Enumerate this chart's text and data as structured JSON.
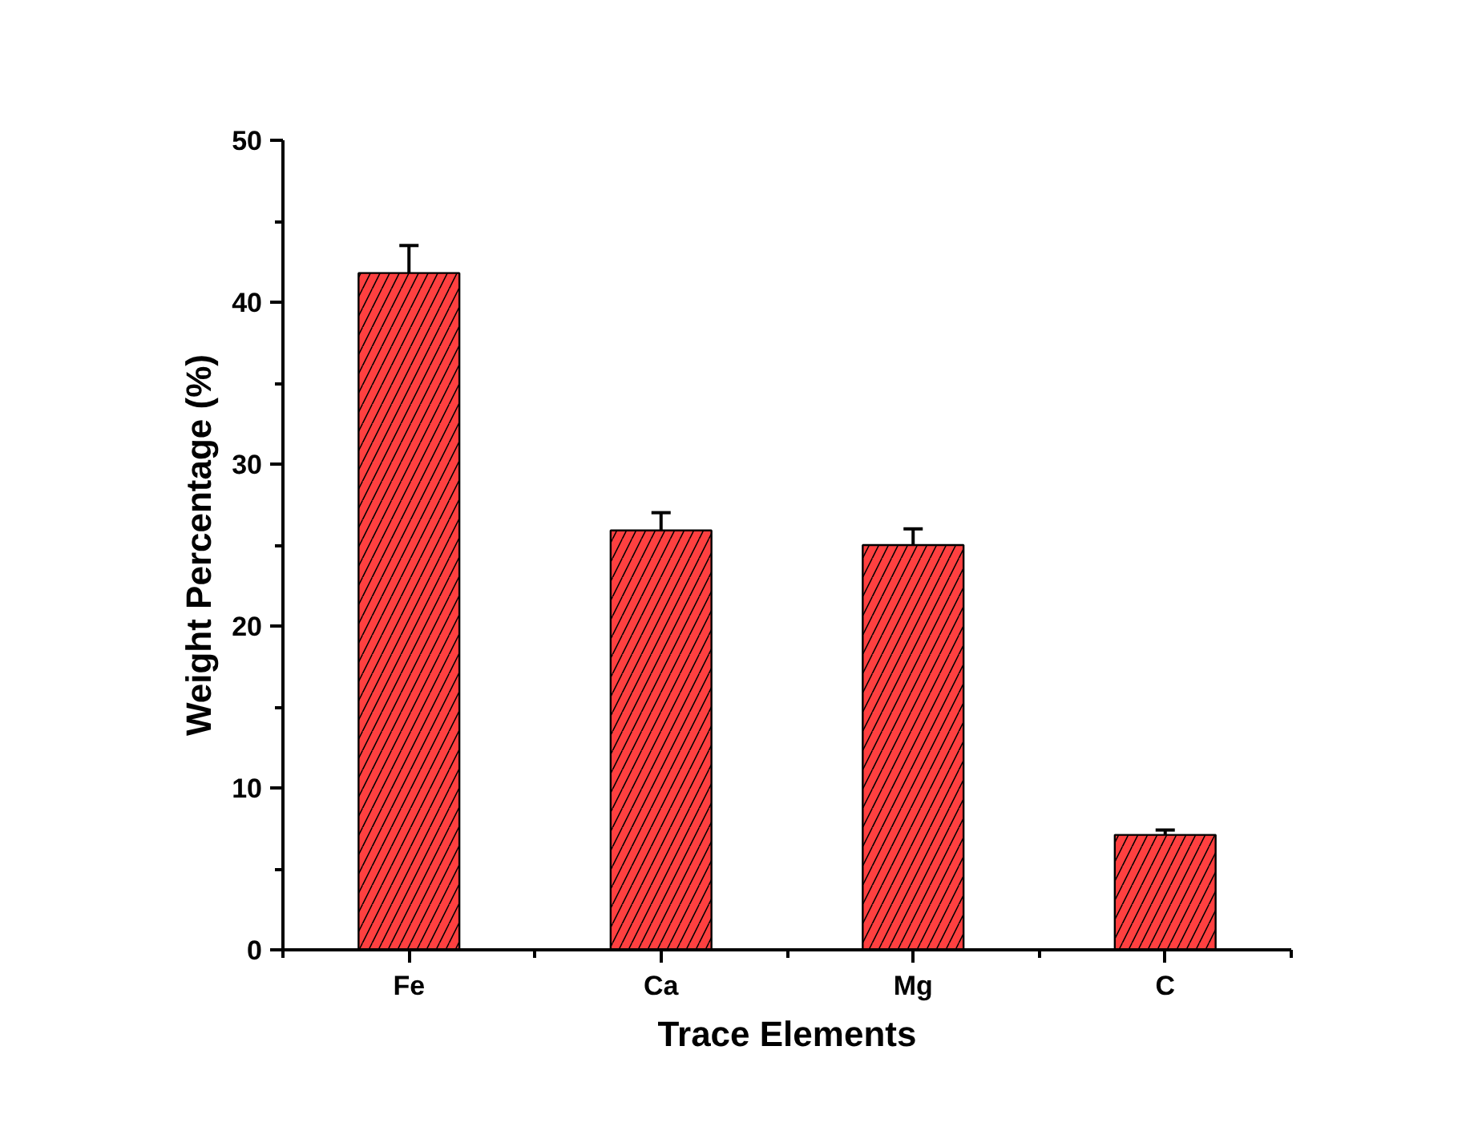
{
  "chart_data": {
    "type": "bar",
    "xlabel": "Trace Elements",
    "ylabel": "Weight Percentage (%)",
    "categories": [
      "Fe",
      "Ca",
      "Mg",
      "C"
    ],
    "values": [
      41.8,
      25.9,
      25.0,
      7.1
    ],
    "errors": [
      1.7,
      1.1,
      1.0,
      0.3
    ],
    "color": "#ff4040",
    "ylim": [
      0,
      50
    ],
    "yticks": [
      0,
      10,
      20,
      30,
      40,
      50
    ],
    "grid": false
  }
}
